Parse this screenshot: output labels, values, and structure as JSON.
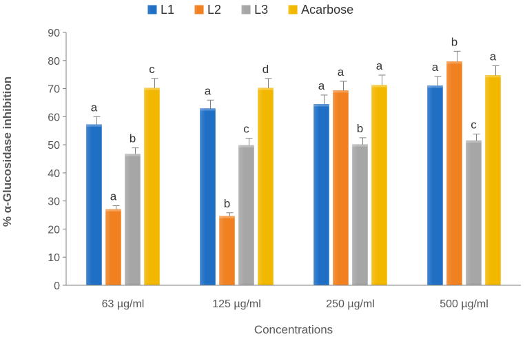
{
  "chart_data": {
    "type": "bar",
    "xlabel": "Concentrations",
    "ylabel": "% α-Glucosidase inhibition",
    "ylim": [
      0,
      90
    ],
    "yticks": [
      0,
      10,
      20,
      30,
      40,
      50,
      60,
      70,
      80,
      90
    ],
    "categories": [
      "63 µg/ml",
      "125 µg/ml",
      "250 µg/ml",
      "500 µg/ml"
    ],
    "legend_position": "top",
    "grid": false,
    "error_bars": true,
    "series": [
      {
        "name": "L1",
        "color": "#1F6FC5",
        "values": [
          57.2,
          62.9,
          64.4,
          71.0
        ],
        "errors": [
          2.8,
          3.0,
          3.3,
          3.3
        ],
        "labels": [
          "a",
          "a",
          "a",
          "a"
        ]
      },
      {
        "name": "L2",
        "color": "#F08020",
        "values": [
          27.0,
          24.6,
          69.3,
          79.6
        ],
        "errors": [
          1.3,
          1.2,
          3.3,
          3.7
        ],
        "labels": [
          "a",
          "b",
          "a",
          "b"
        ]
      },
      {
        "name": "L3",
        "color": "#A6A6A6",
        "values": [
          46.7,
          49.8,
          50.1,
          51.5
        ],
        "errors": [
          2.2,
          2.5,
          2.4,
          2.3
        ],
        "labels": [
          "b",
          "c",
          "b",
          "c"
        ]
      },
      {
        "name": "Acarbose",
        "color": "#F2B800",
        "values": [
          70.2,
          70.2,
          71.2,
          74.7
        ],
        "errors": [
          3.4,
          3.4,
          3.6,
          3.4
        ],
        "labels": [
          "c",
          "d",
          "a",
          "a"
        ]
      }
    ]
  }
}
